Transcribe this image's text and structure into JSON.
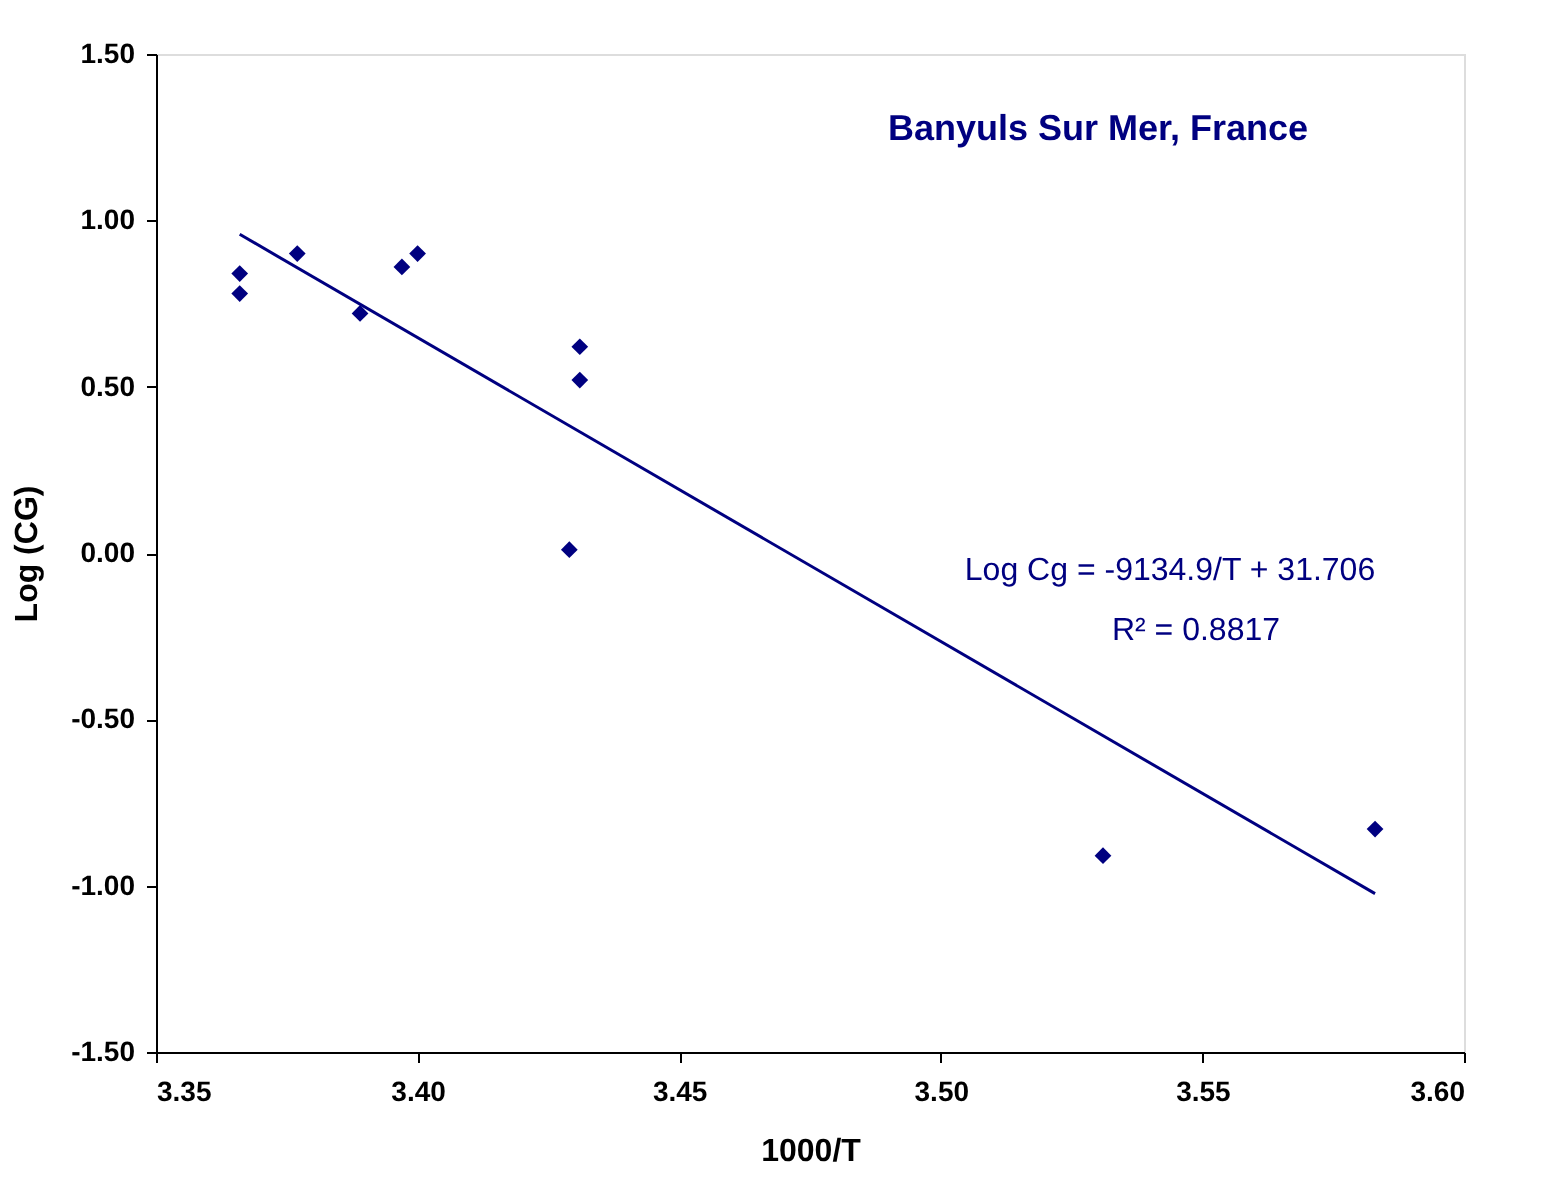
{
  "chart_data": {
    "type": "scatter",
    "xlabel": "1000/T",
    "ylabel": "Log (CG)",
    "annotations": [
      "Banyuls Sur Mer, France",
      "Log Cg = -9134.9/T + 31.706",
      "R² = 0.8817"
    ],
    "series": [
      {
        "color": "#000080",
        "marker": "diamond",
        "x": [
          3.366,
          3.366,
          3.377,
          3.389,
          3.397,
          3.4,
          3.431,
          3.431,
          3.429,
          3.531,
          3.583
        ],
        "values": [
          0.84,
          0.78,
          0.9,
          0.72,
          0.86,
          0.9,
          0.62,
          0.52,
          0.01,
          -0.91,
          -0.83
        ]
      },
      {
        "type": "line",
        "color": "#000080",
        "marker": "none",
        "line_style": "solid",
        "x": [
          3.366,
          3.583
        ],
        "values": [
          0.958,
          -1.024
        ]
      }
    ],
    "xlim": [
      3.35,
      3.6
    ],
    "xticks": [
      {
        "value": 3.35,
        "label": "3.35"
      },
      {
        "value": 3.4,
        "label": "3.40"
      },
      {
        "value": 3.45,
        "label": "3.45"
      },
      {
        "value": 3.5,
        "label": "3.50"
      },
      {
        "value": 3.55,
        "label": "3.55"
      },
      {
        "value": 3.6,
        "label": "3.60"
      }
    ],
    "ylim": [
      -1.5,
      1.5
    ],
    "yticks": [
      {
        "value": -1.5,
        "label": "-1.50"
      },
      {
        "value": -1.0,
        "label": "-1.00"
      },
      {
        "value": -0.5,
        "label": "-0.50"
      },
      {
        "value": 0,
        "label": "0.00"
      },
      {
        "value": 0.5,
        "label": "0.50"
      },
      {
        "value": 1.0,
        "label": "1.00"
      },
      {
        "value": 1.5,
        "label": "1.50"
      }
    ],
    "grid": false
  }
}
